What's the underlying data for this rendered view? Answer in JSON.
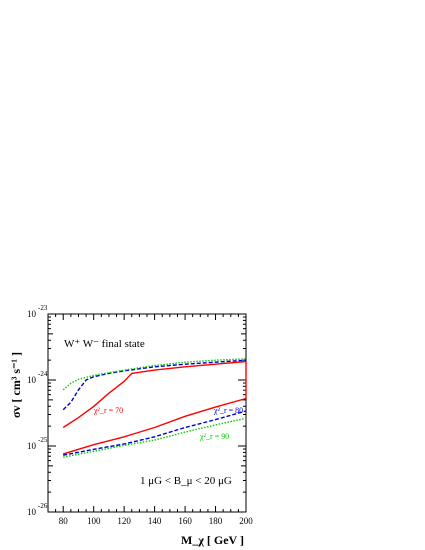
{
  "chart_data": {
    "type": "line",
    "xlabel": "M_χ [ GeV ]",
    "ylabel": "σv [ cm³ s⁻¹ ]",
    "xlim": [
      70,
      200
    ],
    "ylim_log10": [
      -26,
      -23
    ],
    "ylog": true,
    "grid": false,
    "x_ticks": [
      "80",
      "100",
      "120",
      "140",
      "160",
      "180",
      "200"
    ],
    "y_ticks": [
      {
        "base": "10",
        "exp": "-26",
        "value": -26
      },
      {
        "base": "10",
        "exp": "-25",
        "value": -25
      },
      {
        "base": "10",
        "exp": "-24",
        "value": -24
      },
      {
        "base": "10",
        "exp": "-23",
        "value": -23
      }
    ],
    "annotations": {
      "title": "W⁺ W⁻ final state",
      "b_range": "1 μG < B_μ < 20 μG",
      "chi70": "χ²_r = 70",
      "chi80": "χ²_r = 80",
      "chi90": "χ²_r = 90"
    },
    "colors": {
      "chi70": "#ff0000",
      "chi80": "#0000cc",
      "chi90": "#00cc00"
    },
    "series": [
      {
        "key": "chi70_upper",
        "style": "solid",
        "color": "#ff0000",
        "x": [
          80,
          90,
          100,
          110,
          120,
          125,
          140,
          160,
          180,
          200
        ],
        "log10_y": [
          -24.72,
          -24.57,
          -24.4,
          -24.2,
          -24.02,
          -23.9,
          -23.85,
          -23.8,
          -23.76,
          -23.72
        ]
      },
      {
        "key": "chi70_lower",
        "style": "solid",
        "color": "#ff0000",
        "x": [
          80,
          90,
          100,
          120,
          140,
          160,
          180,
          200
        ],
        "log10_y": [
          -25.12,
          -25.05,
          -24.98,
          -24.86,
          -24.72,
          -24.55,
          -24.41,
          -24.28
        ]
      },
      {
        "key": "chi80_upper",
        "style": "dashed",
        "color": "#0000cc",
        "x": [
          80,
          85,
          90,
          95,
          100,
          110,
          120,
          140,
          160,
          180,
          200
        ],
        "log10_y": [
          -24.45,
          -24.34,
          -24.15,
          -24.0,
          -23.95,
          -23.9,
          -23.86,
          -23.8,
          -23.76,
          -23.73,
          -23.7
        ]
      },
      {
        "key": "chi80_lower",
        "style": "dashed",
        "color": "#0000cc",
        "x": [
          80,
          100,
          120,
          140,
          160,
          180,
          200
        ],
        "log10_y": [
          -25.14,
          -25.05,
          -24.97,
          -24.86,
          -24.72,
          -24.6,
          -24.47
        ]
      },
      {
        "key": "chi90_upper",
        "style": "dotted",
        "color": "#00cc00",
        "x": [
          80,
          85,
          90,
          100,
          120,
          140,
          160,
          180,
          200
        ],
        "log10_y": [
          -24.15,
          -24.05,
          -23.99,
          -23.93,
          -23.85,
          -23.78,
          -23.73,
          -23.7,
          -23.68
        ]
      },
      {
        "key": "chi90_lower",
        "style": "dotted",
        "color": "#00cc00",
        "x": [
          80,
          100,
          120,
          140,
          160,
          180,
          200
        ],
        "log10_y": [
          -25.17,
          -25.08,
          -24.99,
          -24.91,
          -24.79,
          -24.68,
          -24.58
        ]
      },
      {
        "key": "edge_at_200",
        "style": "solid",
        "color": "#ff0000",
        "x": [
          200,
          200
        ],
        "log10_y": [
          -23.72,
          -24.28
        ]
      }
    ]
  }
}
